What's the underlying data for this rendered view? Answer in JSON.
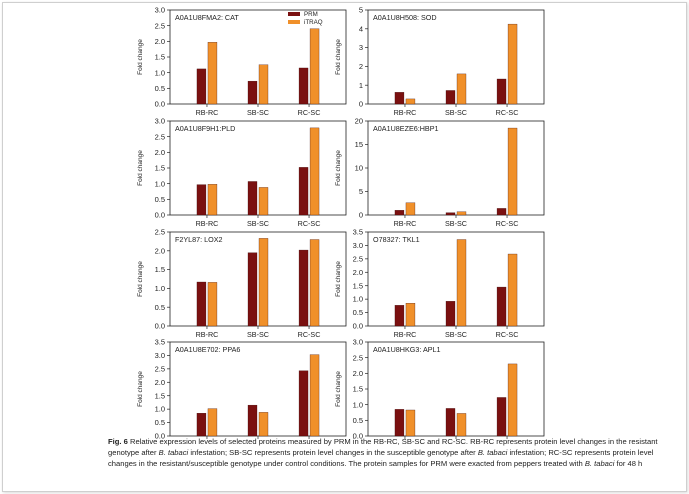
{
  "colors": {
    "prm": "#7a1010",
    "itraq": "#f0902a",
    "axis": "#222222"
  },
  "chart_data": [
    {
      "type": "bar",
      "title": "A0A1U8FMA2: CAT",
      "categories": [
        "RB-RC",
        "SB-SC",
        "RC-SC"
      ],
      "ylabel": "Fold change",
      "ylim": [
        0,
        3.0
      ],
      "ticks": [
        "0.0",
        "0.5",
        "1.0",
        "1.5",
        "2.0",
        "2.5",
        "3.0"
      ],
      "legend": [
        "PRM",
        "iTRAQ"
      ],
      "series": [
        {
          "name": "PRM",
          "values": [
            1.12,
            0.73,
            1.15
          ]
        },
        {
          "name": "iTRAQ",
          "values": [
            1.97,
            1.25,
            2.4
          ]
        }
      ]
    },
    {
      "type": "bar",
      "title": "A0A1U8H508: SOD",
      "categories": [
        "RB-RC",
        "SB-SC",
        "RC-SC"
      ],
      "ylabel": "Fold change",
      "ylim": [
        0,
        5
      ],
      "ticks": [
        "0",
        "1",
        "2",
        "3",
        "4",
        "5"
      ],
      "legend": [],
      "series": [
        {
          "name": "PRM",
          "values": [
            0.62,
            0.72,
            1.33
          ]
        },
        {
          "name": "iTRAQ",
          "values": [
            0.27,
            1.6,
            4.25
          ]
        }
      ]
    },
    {
      "type": "bar",
      "title": "A0A1U8F9H1:PLD",
      "categories": [
        "RB-RC",
        "SB-SC",
        "RC-SC"
      ],
      "ylabel": "Fold change",
      "ylim": [
        0,
        3.0
      ],
      "ticks": [
        "0.0",
        "0.5",
        "1.0",
        "1.5",
        "2.0",
        "2.5",
        "3.0"
      ],
      "legend": [],
      "series": [
        {
          "name": "PRM",
          "values": [
            0.97,
            1.07,
            1.52
          ]
        },
        {
          "name": "iTRAQ",
          "values": [
            0.98,
            0.88,
            2.78
          ]
        }
      ]
    },
    {
      "type": "bar",
      "title": "A0A1U8EZE6:HBP1",
      "categories": [
        "RB-RC",
        "SB-SC",
        "RC-SC"
      ],
      "ylabel": "Fold change",
      "ylim": [
        0,
        20
      ],
      "ticks": [
        "0",
        "5",
        "10",
        "15",
        "20"
      ],
      "legend": [],
      "series": [
        {
          "name": "PRM",
          "values": [
            1.0,
            0.5,
            1.4
          ]
        },
        {
          "name": "iTRAQ",
          "values": [
            2.6,
            0.7,
            18.5
          ]
        }
      ]
    },
    {
      "type": "bar",
      "title": "F2YL87: LOX2",
      "categories": [
        "RB-RC",
        "SB-SC",
        "RC-SC"
      ],
      "ylabel": "Fold change",
      "ylim": [
        0,
        2.5
      ],
      "ticks": [
        "0.0",
        "0.5",
        "1.0",
        "1.5",
        "2.0",
        "2.5"
      ],
      "legend": [],
      "series": [
        {
          "name": "PRM",
          "values": [
            1.17,
            1.95,
            2.02
          ]
        },
        {
          "name": "iTRAQ",
          "values": [
            1.16,
            2.33,
            2.3
          ]
        }
      ]
    },
    {
      "type": "bar",
      "title": "O78327: TKL1",
      "categories": [
        "RB-RC",
        "SB-SC",
        "RC-SC"
      ],
      "ylabel": "Fold change",
      "ylim": [
        0,
        3.5
      ],
      "ticks": [
        "0.0",
        "0.5",
        "1.0",
        "1.5",
        "2.0",
        "2.5",
        "3.0",
        "3.5"
      ],
      "legend": [],
      "series": [
        {
          "name": "PRM",
          "values": [
            0.77,
            0.92,
            1.45
          ]
        },
        {
          "name": "iTRAQ",
          "values": [
            0.85,
            3.22,
            2.68
          ]
        }
      ]
    },
    {
      "type": "bar",
      "title": "A0A1U8E702: PPA6",
      "categories": [
        "RB-RC",
        "SB-SC",
        "RC-SC"
      ],
      "ylabel": "Fold change",
      "ylim": [
        0,
        3.5
      ],
      "ticks": [
        "0.0",
        "0.5",
        "1.0",
        "1.5",
        "2.0",
        "2.5",
        "3.0",
        "3.5"
      ],
      "legend": [],
      "series": [
        {
          "name": "PRM",
          "values": [
            0.85,
            1.15,
            2.43
          ]
        },
        {
          "name": "iTRAQ",
          "values": [
            1.02,
            0.88,
            3.03
          ]
        }
      ]
    },
    {
      "type": "bar",
      "title": "A0A1U8HKG3: APL1",
      "categories": [
        "RB-RC",
        "SB-SC",
        "RC-SC"
      ],
      "ylabel": "Fold change",
      "ylim": [
        0,
        3.0
      ],
      "ticks": [
        "0.0",
        "0.5",
        "1.0",
        "1.5",
        "2.0",
        "2.5",
        "3.0"
      ],
      "legend": [],
      "series": [
        {
          "name": "PRM",
          "values": [
            0.85,
            0.88,
            1.23
          ]
        },
        {
          "name": "iTRAQ",
          "values": [
            0.83,
            0.72,
            2.3
          ]
        }
      ]
    }
  ],
  "caption": {
    "label": "Fig. 6",
    "text_1": " Relative expression levels of selected proteins measured by PRM in the RB-RC, SB-SC and RC-SC. RB-RC represents protein level changes in the resistant genotype after ",
    "pathogen": "B. tabaci",
    "text_2": " infestation; SB-SC represents protein level changes in the susceptible genotype after ",
    "text_3": " infestation; RC-SC represents protein level changes in the resistant/susceptible genotype under control conditions. The protein samples for PRM were exacted from peppers treated with ",
    "text_4": " for 48 h"
  }
}
